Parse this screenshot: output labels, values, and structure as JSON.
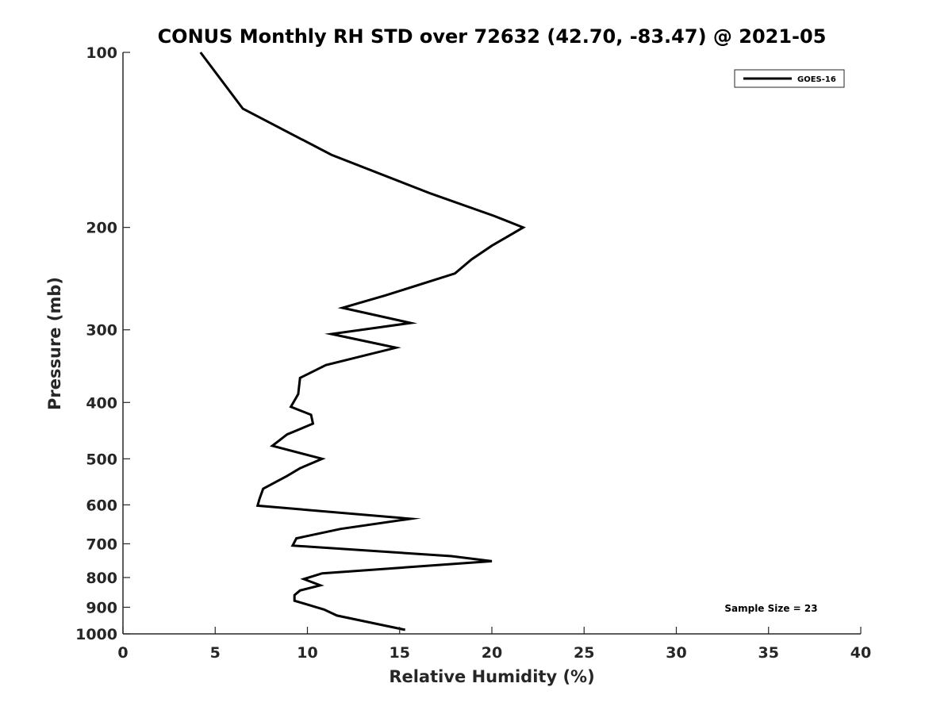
{
  "chart_data": {
    "type": "line",
    "title": "CONUS Monthly RH STD over 72632 (42.70, -83.47) @ 2021-05",
    "xlabel": "Relative Humidity (%)",
    "ylabel": "Pressure (mb)",
    "xlim": [
      0,
      40
    ],
    "ylim": [
      100,
      1000
    ],
    "y_scale": "log",
    "y_reversed": true,
    "x_ticks": [
      "0",
      "5",
      "10",
      "15",
      "20",
      "25",
      "30",
      "35",
      "40"
    ],
    "y_ticks": [
      "100",
      "200",
      "300",
      "400",
      "500",
      "600",
      "700",
      "800",
      "900",
      "1000"
    ],
    "grid": false,
    "legend_position": "top-right",
    "annotation": "Sample Size = 23",
    "series": [
      {
        "name": "GOES-16",
        "color": "#000000",
        "points": [
          [
            4.2,
            100
          ],
          [
            6.5,
            125
          ],
          [
            11.3,
            150
          ],
          [
            16.7,
            175
          ],
          [
            20.1,
            191
          ],
          [
            21.7,
            200
          ],
          [
            20.0,
            215
          ],
          [
            18.9,
            227
          ],
          [
            18.0,
            240
          ],
          [
            14.2,
            262
          ],
          [
            11.9,
            275
          ],
          [
            15.6,
            292
          ],
          [
            11.3,
            305
          ],
          [
            14.8,
            322
          ],
          [
            11.0,
            345
          ],
          [
            9.6,
            363
          ],
          [
            9.5,
            387
          ],
          [
            9.1,
            407
          ],
          [
            10.2,
            420
          ],
          [
            10.3,
            435
          ],
          [
            8.9,
            454
          ],
          [
            8.1,
            475
          ],
          [
            10.8,
            500
          ],
          [
            9.6,
            519
          ],
          [
            8.9,
            535
          ],
          [
            7.6,
            563
          ],
          [
            7.4,
            586
          ],
          [
            7.3,
            602
          ],
          [
            15.6,
            634
          ],
          [
            11.8,
            660
          ],
          [
            9.4,
            685
          ],
          [
            9.2,
            705
          ],
          [
            17.8,
            735
          ],
          [
            20.0,
            750
          ],
          [
            10.8,
            787
          ],
          [
            9.8,
            805
          ],
          [
            10.7,
            825
          ],
          [
            9.6,
            842
          ],
          [
            9.3,
            858
          ],
          [
            9.3,
            877
          ],
          [
            10.9,
            908
          ],
          [
            11.6,
            930
          ],
          [
            15.3,
            984
          ]
        ]
      }
    ]
  }
}
